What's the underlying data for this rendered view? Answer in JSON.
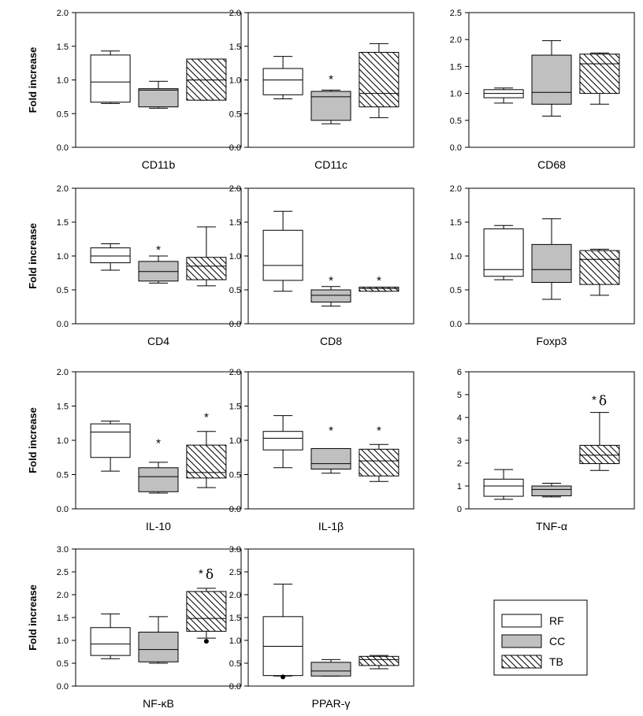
{
  "figure": {
    "legend": {
      "entries": [
        {
          "key": "RF",
          "label": "RF",
          "fill": "#ffffff",
          "pattern": "none"
        },
        {
          "key": "CC",
          "label": "CC",
          "fill": "#c0c0c0",
          "pattern": "none"
        },
        {
          "key": "TB",
          "label": "TB",
          "fill": "#ffffff",
          "pattern": "diagonal"
        }
      ]
    },
    "colors": {
      "RF": "#ffffff",
      "CC": "#c0c0c0",
      "TB": "#ffffff",
      "stroke": "#000000"
    }
  },
  "chart_data": [
    {
      "type": "boxplot",
      "title": "CD11b",
      "ylabel": "Fold increase",
      "ylim": [
        0,
        2.0
      ],
      "yticks": [
        "0.0",
        "0.5",
        "1.0",
        "1.5",
        "2.0"
      ],
      "series": [
        {
          "name": "RF",
          "whisker_low": 0.65,
          "q1": 0.67,
          "median": 0.97,
          "q3": 1.37,
          "whisker_high": 1.43
        },
        {
          "name": "CC",
          "whisker_low": 0.58,
          "q1": 0.6,
          "median": 0.85,
          "q3": 0.87,
          "whisker_high": 0.98
        },
        {
          "name": "TB",
          "whisker_low": 0.7,
          "q1": 0.7,
          "median": 1.0,
          "q3": 1.31,
          "whisker_high": 1.31
        }
      ],
      "annotations": []
    },
    {
      "type": "boxplot",
      "title": "CD11c",
      "ylabel": "",
      "ylim": [
        0,
        2.0
      ],
      "yticks": [
        "0.0",
        "0.5",
        "1.0",
        "1.5",
        "2.0"
      ],
      "series": [
        {
          "name": "RF",
          "whisker_low": 0.72,
          "q1": 0.78,
          "median": 1.0,
          "q3": 1.17,
          "whisker_high": 1.35
        },
        {
          "name": "CC",
          "whisker_low": 0.35,
          "q1": 0.4,
          "median": 0.75,
          "q3": 0.83,
          "whisker_high": 0.85
        },
        {
          "name": "TB",
          "whisker_low": 0.44,
          "q1": 0.6,
          "median": 0.8,
          "q3": 1.41,
          "whisker_high": 1.54
        }
      ],
      "annotations": [
        {
          "group": 1,
          "text": "*",
          "y": 1.0
        }
      ]
    },
    {
      "type": "boxplot",
      "title": "CD68",
      "ylabel": "",
      "ylim": [
        0,
        2.5
      ],
      "yticks": [
        "0.0",
        "0.5",
        "1.0",
        "1.5",
        "2.0",
        "2.5"
      ],
      "series": [
        {
          "name": "RF",
          "whisker_low": 0.82,
          "q1": 0.92,
          "median": 1.0,
          "q3": 1.07,
          "whisker_high": 1.1
        },
        {
          "name": "CC",
          "whisker_low": 0.58,
          "q1": 0.8,
          "median": 1.02,
          "q3": 1.71,
          "whisker_high": 1.98
        },
        {
          "name": "TB",
          "whisker_low": 0.8,
          "q1": 1.0,
          "median": 1.55,
          "q3": 1.73,
          "whisker_high": 1.75
        }
      ],
      "annotations": []
    },
    {
      "type": "boxplot",
      "title": "CD4",
      "ylabel": "Fold increase",
      "ylim": [
        0,
        2.0
      ],
      "yticks": [
        "0.0",
        "0.5",
        "1.0",
        "1.5",
        "2.0"
      ],
      "series": [
        {
          "name": "RF",
          "whisker_low": 0.79,
          "q1": 0.9,
          "median": 1.0,
          "q3": 1.12,
          "whisker_high": 1.18
        },
        {
          "name": "CC",
          "whisker_low": 0.6,
          "q1": 0.63,
          "median": 0.77,
          "q3": 0.92,
          "whisker_high": 1.0
        },
        {
          "name": "TB",
          "whisker_low": 0.56,
          "q1": 0.65,
          "median": 0.85,
          "q3": 0.98,
          "whisker_high": 1.43
        }
      ],
      "annotations": [
        {
          "group": 1,
          "text": "*",
          "y": 1.08
        }
      ]
    },
    {
      "type": "boxplot",
      "title": "CD8",
      "ylabel": "",
      "ylim": [
        0,
        2.0
      ],
      "yticks": [
        "0.0",
        "0.5",
        "1.0",
        "1.5",
        "2.0"
      ],
      "series": [
        {
          "name": "RF",
          "whisker_low": 0.48,
          "q1": 0.64,
          "median": 0.86,
          "q3": 1.38,
          "whisker_high": 1.66
        },
        {
          "name": "CC",
          "whisker_low": 0.26,
          "q1": 0.32,
          "median": 0.42,
          "q3": 0.5,
          "whisker_high": 0.55
        },
        {
          "name": "TB",
          "whisker_low": 0.48,
          "q1": 0.48,
          "median": 0.52,
          "q3": 0.54,
          "whisker_high": 0.54
        }
      ],
      "annotations": [
        {
          "group": 1,
          "text": "*",
          "y": 0.63
        },
        {
          "group": 2,
          "text": "*",
          "y": 0.63
        }
      ]
    },
    {
      "type": "boxplot",
      "title": "Foxp3",
      "ylabel": "",
      "ylim": [
        0,
        2.0
      ],
      "yticks": [
        "0.0",
        "0.5",
        "1.0",
        "1.5",
        "2.0"
      ],
      "series": [
        {
          "name": "RF",
          "whisker_low": 0.65,
          "q1": 0.7,
          "median": 0.8,
          "q3": 1.4,
          "whisker_high": 1.45
        },
        {
          "name": "CC",
          "whisker_low": 0.36,
          "q1": 0.61,
          "median": 0.8,
          "q3": 1.17,
          "whisker_high": 1.55
        },
        {
          "name": "TB",
          "whisker_low": 0.42,
          "q1": 0.58,
          "median": 0.95,
          "q3": 1.08,
          "whisker_high": 1.1
        }
      ],
      "annotations": []
    },
    {
      "type": "boxplot",
      "title": "IL-10",
      "ylabel": "Fold increase",
      "ylim": [
        0,
        2.0
      ],
      "yticks": [
        "0.0",
        "0.5",
        "1.0",
        "1.5",
        "2.0"
      ],
      "series": [
        {
          "name": "RF",
          "whisker_low": 0.55,
          "q1": 0.75,
          "median": 1.12,
          "q3": 1.24,
          "whisker_high": 1.28
        },
        {
          "name": "CC",
          "whisker_low": 0.23,
          "q1": 0.25,
          "median": 0.47,
          "q3": 0.6,
          "whisker_high": 0.68
        },
        {
          "name": "TB",
          "whisker_low": 0.31,
          "q1": 0.45,
          "median": 0.53,
          "q3": 0.93,
          "whisker_high": 1.13
        }
      ],
      "annotations": [
        {
          "group": 1,
          "text": "*",
          "y": 0.95
        },
        {
          "group": 2,
          "text": "*",
          "y": 1.33
        }
      ]
    },
    {
      "type": "boxplot",
      "title": "IL-1β",
      "ylabel": "",
      "ylim": [
        0,
        2.0
      ],
      "yticks": [
        "0.0",
        "0.5",
        "1.0",
        "1.5",
        "2.0"
      ],
      "series": [
        {
          "name": "RF",
          "whisker_low": 0.6,
          "q1": 0.86,
          "median": 1.03,
          "q3": 1.13,
          "whisker_high": 1.36
        },
        {
          "name": "CC",
          "whisker_low": 0.52,
          "q1": 0.58,
          "median": 0.66,
          "q3": 0.88,
          "whisker_high": 0.88
        },
        {
          "name": "TB",
          "whisker_low": 0.4,
          "q1": 0.48,
          "median": 0.7,
          "q3": 0.87,
          "whisker_high": 0.94
        }
      ],
      "annotations": [
        {
          "group": 1,
          "text": "*",
          "y": 1.13
        },
        {
          "group": 2,
          "text": "*",
          "y": 1.13
        }
      ]
    },
    {
      "type": "boxplot",
      "title": "TNF-α",
      "ylabel": "",
      "ylim": [
        0,
        6
      ],
      "yticks": [
        "0",
        "1",
        "2",
        "3",
        "4",
        "5",
        "6"
      ],
      "series": [
        {
          "name": "RF",
          "whisker_low": 0.42,
          "q1": 0.55,
          "median": 1.0,
          "q3": 1.3,
          "whisker_high": 1.72
        },
        {
          "name": "CC",
          "whisker_low": 0.52,
          "q1": 0.57,
          "median": 0.85,
          "q3": 1.0,
          "whisker_high": 1.12
        },
        {
          "name": "TB",
          "whisker_low": 1.68,
          "q1": 1.98,
          "median": 2.35,
          "q3": 2.78,
          "whisker_high": 4.22
        }
      ],
      "annotations": [
        {
          "group": 2,
          "text": "*",
          "y": 4.75,
          "extra": "δ"
        }
      ]
    },
    {
      "type": "boxplot",
      "title": "NF-κB",
      "ylabel": "Fold increase",
      "ylim": [
        0,
        3.0
      ],
      "yticks": [
        "0.0",
        "0.5",
        "1.0",
        "1.5",
        "2.0",
        "2.5",
        "3.0"
      ],
      "series": [
        {
          "name": "RF",
          "whisker_low": 0.6,
          "q1": 0.67,
          "median": 0.92,
          "q3": 1.28,
          "whisker_high": 1.58
        },
        {
          "name": "CC",
          "whisker_low": 0.5,
          "q1": 0.53,
          "median": 0.8,
          "q3": 1.18,
          "whisker_high": 1.52
        },
        {
          "name": "TB",
          "whisker_low": 1.05,
          "q1": 1.2,
          "median": 1.48,
          "q3": 2.07,
          "whisker_high": 2.14,
          "outliers": [
            0.98
          ]
        }
      ],
      "annotations": [
        {
          "group": 2,
          "text": "*",
          "y": 2.45,
          "extra": "δ"
        }
      ]
    },
    {
      "type": "boxplot",
      "title": "PPAR-γ",
      "ylabel": "",
      "ylim": [
        0,
        3.0
      ],
      "yticks": [
        "0.0",
        "0.5",
        "1.0",
        "1.5",
        "2.0",
        "2.5",
        "3.0"
      ],
      "series": [
        {
          "name": "RF",
          "whisker_low": 0.22,
          "q1": 0.23,
          "median": 0.87,
          "q3": 1.52,
          "whisker_high": 2.23,
          "outliers": [
            0.2
          ]
        },
        {
          "name": "CC",
          "whisker_low": 0.22,
          "q1": 0.22,
          "median": 0.33,
          "q3": 0.52,
          "whisker_high": 0.58
        },
        {
          "name": "TB",
          "whisker_low": 0.38,
          "q1": 0.45,
          "median": 0.58,
          "q3": 0.65,
          "whisker_high": 0.67
        }
      ],
      "annotations": []
    }
  ]
}
